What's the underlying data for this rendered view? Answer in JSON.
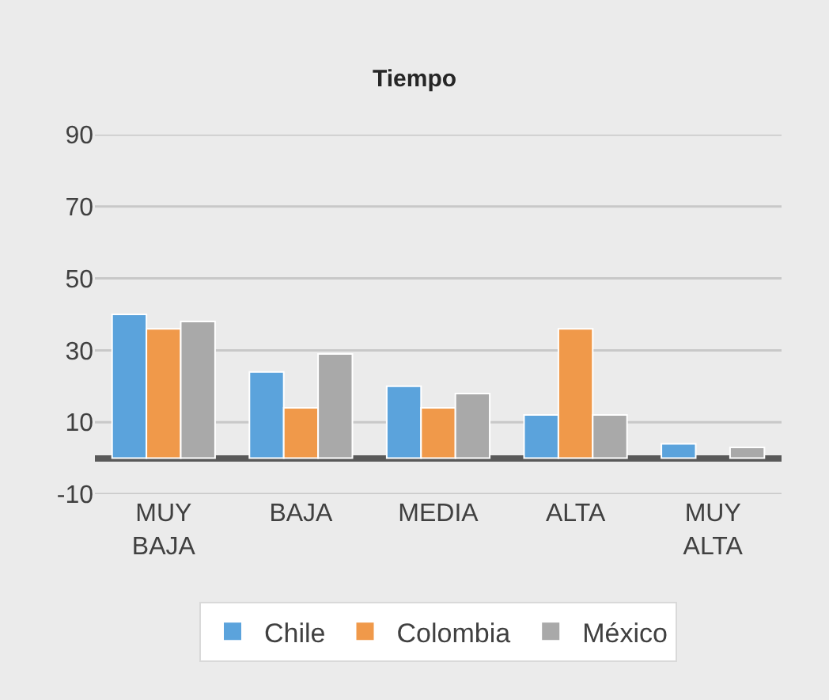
{
  "chart_data": {
    "type": "bar",
    "title": "Tiempo",
    "categories": [
      "MUY BAJA",
      "BAJA",
      "MEDIA",
      "ALTA",
      "MUY ALTA"
    ],
    "series": [
      {
        "name": "Chile",
        "color": "#5ba3dc",
        "values": [
          40,
          24,
          20,
          12,
          4
        ]
      },
      {
        "name": "Colombia",
        "color": "#f0994a",
        "values": [
          36,
          14,
          14,
          36,
          null
        ]
      },
      {
        "name": "México",
        "color": "#a9a9a9",
        "values": [
          38,
          29,
          18,
          12,
          3
        ]
      }
    ],
    "ylim": [
      -10,
      90
    ],
    "yticks": [
      -10,
      10,
      30,
      50,
      70,
      90
    ],
    "grid": "y",
    "legend": "bottom"
  }
}
